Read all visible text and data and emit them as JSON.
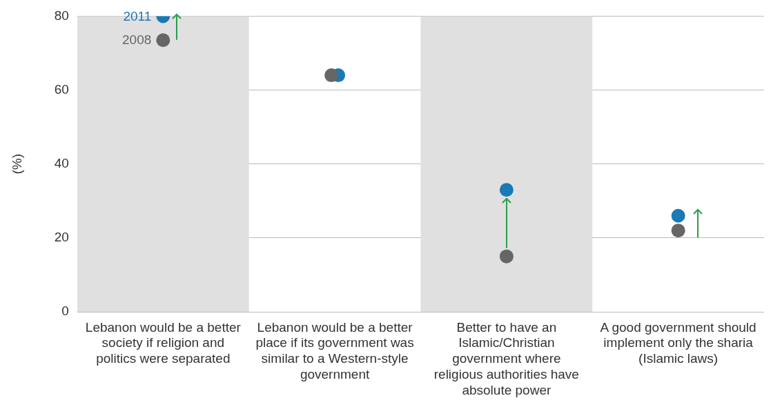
{
  "chart_data": {
    "type": "scatter",
    "ylabel": "(%)",
    "categories": [
      "Lebanon would be a better society if religion and politics were separated",
      "Lebanon would be a better place if its government was similar to a Western-style government",
      "Better to have an Islamic/Christian government where religious authorities have absolute power",
      "A good government should implement only the sharia (Islamic laws)"
    ],
    "series": [
      {
        "name": "2008",
        "color": "#666666",
        "values": [
          73.5,
          64,
          15,
          22
        ]
      },
      {
        "name": "2011",
        "color": "#1a7ab5",
        "values": [
          80,
          64,
          33,
          26
        ]
      }
    ],
    "bands": [
      {
        "axis": "x",
        "from": "Lebanon would be a better society if religion and politics were separated",
        "to": "Lebanon would be a better society if religion and politics were separated",
        "color": "#e0e0e0"
      },
      {
        "axis": "x",
        "from": "Better to have an Islamic/Christian government where religious authorities have absolute power",
        "to": "Better to have an Islamic/Christian government where religious authorities have absolute power",
        "color": "#e0e0e0"
      }
    ],
    "ylim": [
      0,
      80
    ],
    "yticks": [
      0,
      20,
      40,
      60,
      80
    ],
    "grid": "y",
    "legend": false,
    "marker": "circle"
  }
}
